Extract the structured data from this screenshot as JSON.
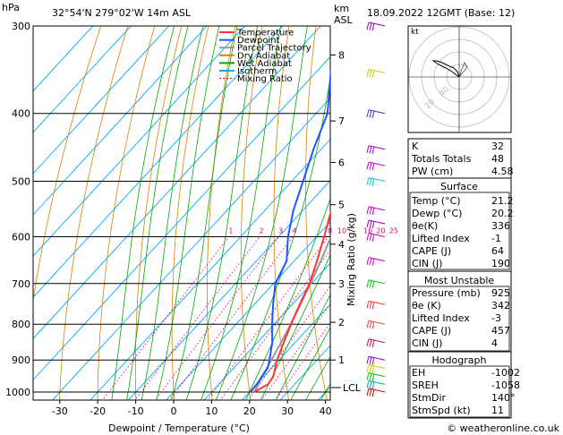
{
  "header": {
    "location": "32°54'N  279°02'W  14m  ASL",
    "datetime": "18.09.2022  12GMT  (Base: 12)"
  },
  "axes": {
    "pressure_unit": "hPa",
    "height_unit": "km",
    "height_unit2": "ASL",
    "xlabel": "Dewpoint / Temperature (°C)",
    "mixing_ratio_label": "Mixing Ratio (g/kg)",
    "lcl_label": "LCL",
    "credit": "© weatheronline.co.uk"
  },
  "legend": [
    {
      "label": "Temperature",
      "color": "#ff3333",
      "style": "solid"
    },
    {
      "label": "Dewpoint",
      "color": "#2255ff",
      "style": "solid"
    },
    {
      "label": "Parcel Trajectory",
      "color": "#999999",
      "style": "solid"
    },
    {
      "label": "Dry Adiabat",
      "color": "#d98000",
      "style": "solid"
    },
    {
      "label": "Wet Adiabat",
      "color": "#00aa00",
      "style": "solid"
    },
    {
      "label": "Isotherm",
      "color": "#00aaff",
      "style": "solid"
    },
    {
      "label": "Mixing Ratio",
      "color": "#e0007e",
      "style": "dotted"
    }
  ],
  "chart_data": {
    "type": "line",
    "title": "",
    "xlabel": "Dewpoint / Temperature (°C)",
    "ylabel": "hPa",
    "x_ticks": [
      -30,
      -20,
      -10,
      0,
      10,
      20,
      30,
      40
    ],
    "pressure_levels": [
      300,
      400,
      500,
      600,
      700,
      800,
      900,
      1000
    ],
    "km_ticks": [
      {
        "km": "8",
        "p": 330
      },
      {
        "km": "7",
        "p": 410
      },
      {
        "km": "6",
        "p": 470
      },
      {
        "km": "5",
        "p": 540
      },
      {
        "km": "4",
        "p": 615
      },
      {
        "km": "3",
        "p": 700
      },
      {
        "km": "2",
        "p": 795
      },
      {
        "km": "1",
        "p": 900
      }
    ],
    "mixing_ratio_values": [
      1,
      2,
      3,
      4,
      8,
      10,
      16,
      20,
      25
    ],
    "series": [
      {
        "name": "Temperature",
        "points": [
          [
            1000,
            21.2
          ],
          [
            975,
            23.0
          ],
          [
            950,
            22.5
          ],
          [
            925,
            21.0
          ],
          [
            900,
            19.5
          ],
          [
            850,
            17.0
          ],
          [
            800,
            14.5
          ],
          [
            750,
            12.0
          ],
          [
            700,
            9.5
          ],
          [
            650,
            6.0
          ],
          [
            600,
            2.0
          ],
          [
            550,
            -2.5
          ],
          [
            500,
            -7.5
          ],
          [
            450,
            -13.5
          ],
          [
            400,
            -20.5
          ],
          [
            350,
            -29.0
          ],
          [
            300,
            -38.0
          ]
        ]
      },
      {
        "name": "Dewpoint",
        "points": [
          [
            1000,
            20.2
          ],
          [
            975,
            20.0
          ],
          [
            950,
            19.5
          ],
          [
            925,
            19.0
          ],
          [
            900,
            17.5
          ],
          [
            850,
            14.0
          ],
          [
            800,
            9.5
          ],
          [
            750,
            5.0
          ],
          [
            700,
            0.5
          ],
          [
            650,
            -2.0
          ],
          [
            600,
            -7.5
          ],
          [
            550,
            -12.5
          ],
          [
            500,
            -17.0
          ],
          [
            450,
            -22.0
          ],
          [
            400,
            -27.0
          ],
          [
            350,
            -36.0
          ],
          [
            300,
            -46.0
          ]
        ]
      },
      {
        "name": "Parcel Trajectory",
        "points": [
          [
            1000,
            21.2
          ],
          [
            975,
            20.5
          ],
          [
            950,
            19.5
          ],
          [
            925,
            18.8
          ],
          [
            900,
            18.0
          ],
          [
            850,
            16.3
          ],
          [
            800,
            14.4
          ],
          [
            750,
            12.2
          ],
          [
            700,
            9.8
          ],
          [
            650,
            7.0
          ],
          [
            600,
            3.8
          ],
          [
            550,
            0.0
          ],
          [
            500,
            -4.5
          ],
          [
            450,
            -10.0
          ],
          [
            400,
            -17.0
          ],
          [
            350,
            -25.5
          ],
          [
            300,
            -35.5
          ]
        ]
      }
    ],
    "hodograph": {
      "label": "kt",
      "ring_labels": [
        "20",
        "40"
      ]
    },
    "wind_barbs_p": [
      300,
      350,
      400,
      450,
      475,
      500,
      550,
      575,
      600,
      650,
      700,
      750,
      800,
      850,
      900,
      925,
      950,
      975,
      1000
    ]
  },
  "indices": [
    {
      "label": "K",
      "value": "32"
    },
    {
      "label": "Totals Totals",
      "value": "48"
    },
    {
      "label": "PW (cm)",
      "value": "4.58"
    }
  ],
  "surface": {
    "title": "Surface",
    "rows": [
      {
        "label": "Temp (°C)",
        "value": "21.2"
      },
      {
        "label": "Dewp (°C)",
        "value": "20.2"
      },
      {
        "label": "θe(K)",
        "value": "336"
      },
      {
        "label": "Lifted Index",
        "value": "-1"
      },
      {
        "label": "CAPE (J)",
        "value": "64"
      },
      {
        "label": "CIN (J)",
        "value": "190"
      }
    ]
  },
  "most_unstable": {
    "title": "Most Unstable",
    "rows": [
      {
        "label": "Pressure (mb)",
        "value": "925"
      },
      {
        "label": "θe (K)",
        "value": "342"
      },
      {
        "label": "Lifted Index",
        "value": "-3"
      },
      {
        "label": "CAPE (J)",
        "value": "457"
      },
      {
        "label": "CIN (J)",
        "value": "4"
      }
    ]
  },
  "hodograph_table": {
    "title": "Hodograph",
    "rows": [
      {
        "label": "EH",
        "value": "-1002"
      },
      {
        "label": "SREH",
        "value": "-1058"
      },
      {
        "label": "StmDir",
        "value": "140°"
      },
      {
        "label": "StmSpd (kt)",
        "value": "11"
      }
    ]
  },
  "colors": {
    "temperature": "#ff3333",
    "dewpoint": "#2255ff",
    "parcel": "#999999",
    "dry_adiabat": "#d98000",
    "wet_adiabat": "#00aa00",
    "isotherm": "#00aaff",
    "mixing_ratio": "#e0007e"
  }
}
